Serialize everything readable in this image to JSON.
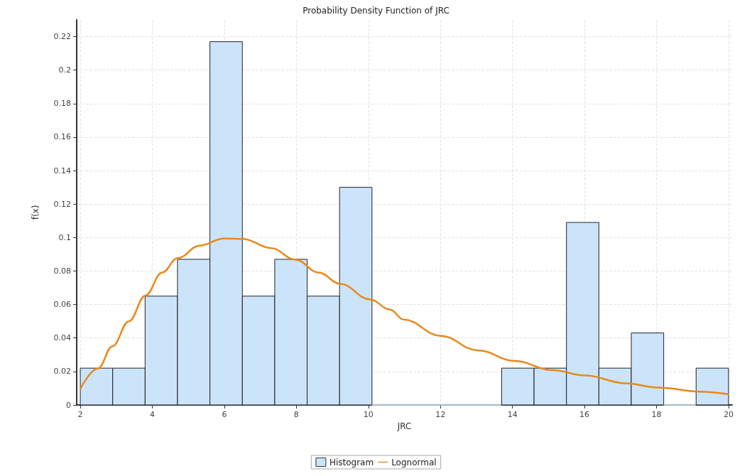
{
  "chart_data": {
    "type": "histogram",
    "title": "Probability Density Function of JRC",
    "xlabel": "JRC",
    "ylabel": "f(x)",
    "xlim": [
      1.9,
      20.1
    ],
    "xticks": [
      2,
      4,
      6,
      8,
      10,
      12,
      14,
      16,
      18,
      20
    ],
    "ylim": [
      0,
      0.23
    ],
    "yticks": [
      0,
      0.02,
      0.04,
      0.06,
      0.08,
      0.1,
      0.12,
      0.14,
      0.16,
      0.18,
      0.2,
      0.22
    ],
    "grid": true,
    "legend": "bottom",
    "marker": "none",
    "series": [
      {
        "name": "Histogram",
        "color": "#cce4fa",
        "bins": [
          2,
          2.9,
          3.8,
          4.7,
          5.6,
          6.5,
          7.4,
          8.3,
          9.2,
          10.1,
          11,
          11.9,
          12.8,
          13.7,
          14.6,
          15.5,
          16.4,
          17.3,
          18.2,
          19.1,
          20
        ],
        "values": [
          0.022,
          0.022,
          0.065,
          0.087,
          0.217,
          0.065,
          0.087,
          0.065,
          0.13,
          0,
          0,
          0,
          0,
          0.022,
          0.022,
          0.109,
          0.022,
          0.043,
          0,
          0.022
        ]
      },
      {
        "name": "Lognormal",
        "type": "line",
        "color": "#e8891c",
        "x": [
          2,
          2.49,
          2.89,
          3.35,
          3.81,
          4.27,
          4.7,
          5.32,
          5.99,
          6.51,
          7.3,
          7.97,
          8.63,
          9.22,
          10.05,
          10.6,
          10.98,
          12.01,
          13.04,
          14.07,
          15.1,
          16.02,
          17.15,
          18.04,
          19.2,
          20
        ],
        "values": [
          0.0096,
          0.0217,
          0.035,
          0.05,
          0.0654,
          0.079,
          0.0877,
          0.0952,
          0.0994,
          0.0992,
          0.0937,
          0.0868,
          0.079,
          0.0723,
          0.063,
          0.057,
          0.051,
          0.0413,
          0.0326,
          0.0263,
          0.0208,
          0.0176,
          0.0129,
          0.0104,
          0.008,
          0.0064
        ]
      }
    ]
  }
}
